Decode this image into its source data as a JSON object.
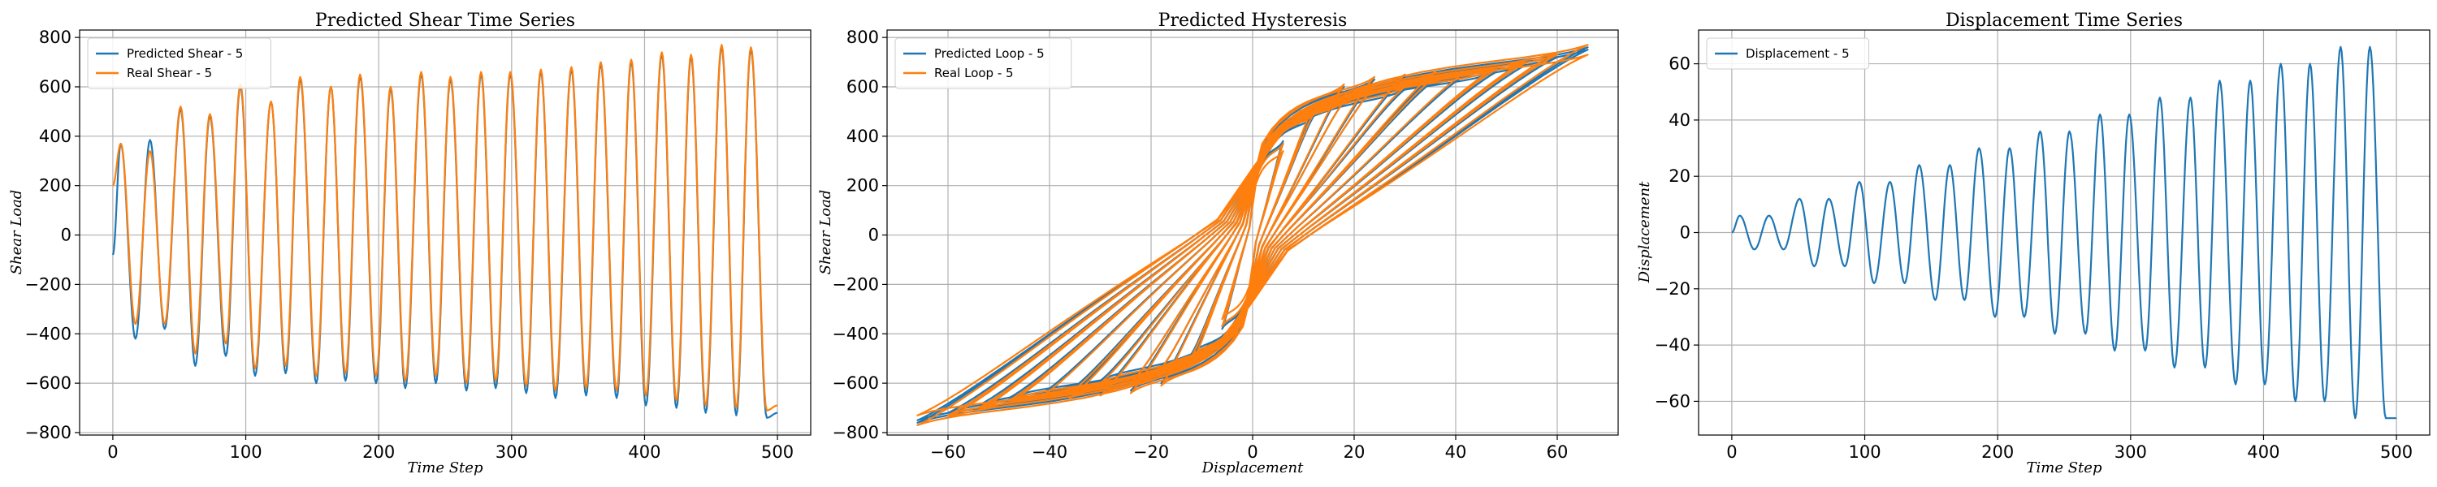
{
  "colors": {
    "blue": "#1f77b4",
    "orange": "#ff7f0e",
    "grid": "#b0b0b0"
  },
  "chart_data": [
    {
      "type": "line",
      "title": "Predicted Shear Time Series",
      "xlabel": "Time Step",
      "ylabel": "Shear Load",
      "xlim": [
        -25,
        525
      ],
      "ylim": [
        -810,
        830
      ],
      "xticks": [
        0,
        100,
        200,
        300,
        400,
        500
      ],
      "yticks": [
        -800,
        -600,
        -400,
        -200,
        0,
        200,
        400,
        600,
        800
      ],
      "grid": true,
      "legend_position": "top-left",
      "series": [
        {
          "name": "Predicted Shear - 5",
          "color": "#1f77b4",
          "x": [
            0,
            6,
            17,
            28,
            39,
            51,
            62,
            73,
            85,
            96,
            107,
            119,
            130,
            141,
            153,
            164,
            175,
            186,
            198,
            209,
            220,
            232,
            243,
            254,
            266,
            277,
            288,
            299,
            311,
            322,
            333,
            345,
            356,
            367,
            379,
            390,
            401,
            413,
            424,
            435,
            446,
            458,
            469,
            480,
            492,
            500
          ],
          "y": [
            -80,
            370,
            -420,
            385,
            -380,
            510,
            -530,
            480,
            -490,
            600,
            -570,
            540,
            -560,
            630,
            -600,
            600,
            -590,
            640,
            -600,
            590,
            -620,
            650,
            -600,
            630,
            -630,
            650,
            -620,
            650,
            -640,
            660,
            -660,
            670,
            -650,
            690,
            -660,
            700,
            -690,
            730,
            -700,
            720,
            -720,
            760,
            -730,
            750,
            -740,
            -720
          ]
        },
        {
          "name": "Real Shear - 5",
          "color": "#ff7f0e",
          "x": [
            0,
            6,
            17,
            28,
            39,
            51,
            62,
            73,
            85,
            96,
            107,
            119,
            130,
            141,
            153,
            164,
            175,
            186,
            198,
            209,
            220,
            232,
            243,
            254,
            266,
            277,
            288,
            299,
            311,
            322,
            333,
            345,
            356,
            367,
            379,
            390,
            401,
            413,
            424,
            435,
            446,
            458,
            469,
            480,
            492,
            500
          ],
          "y": [
            200,
            370,
            -360,
            340,
            -360,
            520,
            -480,
            490,
            -440,
            610,
            -540,
            540,
            -530,
            640,
            -570,
            600,
            -560,
            650,
            -570,
            600,
            -590,
            660,
            -570,
            640,
            -600,
            660,
            -590,
            660,
            -610,
            670,
            -630,
            680,
            -620,
            700,
            -630,
            710,
            -650,
            740,
            -670,
            730,
            -690,
            770,
            -700,
            760,
            -710,
            -690
          ]
        }
      ]
    },
    {
      "type": "line",
      "title": "Predicted Hysteresis",
      "xlabel": "Displacement",
      "ylabel": "Shear Load",
      "xlim": [
        -72,
        72
      ],
      "ylim": [
        -810,
        830
      ],
      "xticks": [
        -60,
        -40,
        -20,
        0,
        20,
        40,
        60
      ],
      "yticks": [
        -800,
        -600,
        -400,
        -200,
        0,
        200,
        400,
        600,
        800
      ],
      "grid": true,
      "legend_position": "top-left",
      "series": [
        {
          "name": "Predicted Loop - 5",
          "color": "#1f77b4",
          "amplitudes": [
            6,
            6,
            12,
            12,
            18,
            18,
            24,
            24,
            30,
            30,
            36,
            36,
            42,
            42,
            48,
            48,
            54,
            54,
            60,
            60,
            66,
            66
          ],
          "peaks": [
            370,
            380,
            510,
            480,
            600,
            540,
            630,
            600,
            640,
            590,
            650,
            630,
            650,
            650,
            660,
            670,
            690,
            700,
            730,
            720,
            760,
            750
          ]
        },
        {
          "name": "Real Loop - 5",
          "color": "#ff7f0e",
          "amplitudes": [
            6,
            6,
            12,
            12,
            18,
            18,
            24,
            24,
            30,
            30,
            36,
            36,
            42,
            42,
            48,
            48,
            54,
            54,
            60,
            60,
            66,
            66
          ],
          "peaks": [
            370,
            340,
            520,
            490,
            610,
            540,
            640,
            600,
            650,
            600,
            660,
            640,
            660,
            660,
            670,
            680,
            700,
            710,
            740,
            730,
            770,
            730
          ]
        }
      ]
    },
    {
      "type": "line",
      "title": "Displacement Time Series",
      "xlabel": "Time Step",
      "ylabel": "Displacement",
      "xlim": [
        -25,
        525
      ],
      "ylim": [
        -72,
        72
      ],
      "xticks": [
        0,
        100,
        200,
        300,
        400,
        500
      ],
      "yticks": [
        -60,
        -40,
        -20,
        0,
        20,
        40,
        60
      ],
      "grid": true,
      "legend_position": "top-left",
      "series": [
        {
          "name": "Displacement - 5",
          "color": "#1f77b4",
          "x": [
            0,
            6,
            17,
            28,
            39,
            51,
            62,
            73,
            85,
            96,
            107,
            119,
            130,
            141,
            153,
            164,
            175,
            186,
            198,
            209,
            220,
            232,
            243,
            254,
            266,
            277,
            288,
            299,
            311,
            322,
            333,
            345,
            356,
            367,
            379,
            390,
            401,
            413,
            424,
            435,
            446,
            458,
            469,
            480,
            492,
            500
          ],
          "y": [
            0,
            6,
            -6,
            6,
            -6,
            12,
            -12,
            12,
            -12,
            18,
            -18,
            18,
            -18,
            24,
            -24,
            24,
            -24,
            30,
            -30,
            30,
            -30,
            36,
            -36,
            36,
            -36,
            42,
            -42,
            42,
            -42,
            48,
            -48,
            48,
            -48,
            54,
            -54,
            54,
            -54,
            60,
            -60,
            60,
            -60,
            66,
            -66,
            66,
            -66,
            -66
          ]
        }
      ]
    }
  ]
}
